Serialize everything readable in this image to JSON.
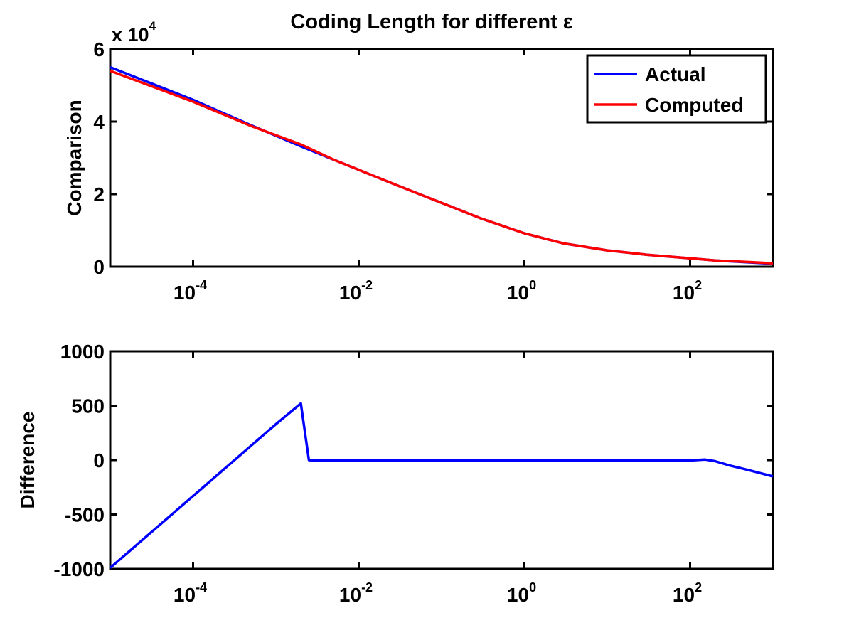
{
  "figure": {
    "title": "Coding Length for different ε"
  },
  "chart_data": [
    {
      "type": "line",
      "title": "Coding Length for different ε",
      "xlabel": "",
      "ylabel": "Comparison",
      "xscale": "log",
      "xlim": [
        1e-05,
        1000
      ],
      "ylim": [
        0,
        60000
      ],
      "y_multiplier_label": "x 10",
      "y_multiplier_exponent": "4",
      "y_ticks": [
        0,
        20000,
        40000,
        60000
      ],
      "y_tick_labels": [
        "0",
        "2",
        "4",
        "6"
      ],
      "x_ticks": [
        0.0001,
        0.01,
        1,
        100
      ],
      "x_tick_bases": [
        "10",
        "10",
        "10",
        "10"
      ],
      "x_tick_exponents": [
        "-4",
        "-2",
        "0",
        "2"
      ],
      "grid": false,
      "legend_position": "top-right",
      "series": [
        {
          "name": "Actual",
          "color": "#0000ff",
          "x": [
            1e-05,
            0.0001,
            0.0005,
            0.002,
            0.005,
            0.01,
            0.03,
            0.1,
            0.3,
            1,
            3,
            10,
            30,
            100,
            200,
            500,
            1000
          ],
          "y": [
            55000,
            46000,
            39000,
            33200,
            29500,
            26700,
            22300,
            17600,
            13300,
            9200,
            6400,
            4500,
            3300,
            2300,
            1700,
            1200,
            800
          ]
        },
        {
          "name": "Computed",
          "color": "#ff0000",
          "x": [
            1e-05,
            0.0001,
            0.0005,
            0.002,
            0.005,
            0.01,
            0.03,
            0.1,
            0.3,
            1,
            3,
            10,
            30,
            100,
            200,
            500,
            1000
          ],
          "y": [
            54000,
            45500,
            38800,
            33700,
            29500,
            26700,
            22300,
            17600,
            13300,
            9200,
            6400,
            4500,
            3300,
            2300,
            1700,
            1300,
            950
          ]
        }
      ]
    },
    {
      "type": "line",
      "title": "",
      "xlabel": "",
      "ylabel": "Difference",
      "xscale": "log",
      "xlim": [
        1e-05,
        1000
      ],
      "ylim": [
        -1000,
        1000
      ],
      "y_ticks": [
        -1000,
        -500,
        0,
        500,
        1000
      ],
      "y_tick_labels": [
        "-1000",
        "-500",
        "0",
        "500",
        "1000"
      ],
      "x_ticks": [
        0.0001,
        0.01,
        1,
        100
      ],
      "x_tick_bases": [
        "10",
        "10",
        "10",
        "10"
      ],
      "x_tick_exponents": [
        "-4",
        "-2",
        "0",
        "2"
      ],
      "grid": false,
      "series": [
        {
          "color": "#0000ff",
          "x": [
            1e-05,
            0.0001,
            0.001,
            0.002,
            0.0025,
            0.003,
            0.01,
            0.1,
            1,
            10,
            100,
            150,
            200,
            300,
            500,
            1000
          ],
          "y": [
            -990,
            -330,
            330,
            520,
            0,
            -5,
            -3,
            -5,
            -3,
            -3,
            -3,
            5,
            -10,
            -50,
            -90,
            -150
          ]
        }
      ]
    }
  ]
}
